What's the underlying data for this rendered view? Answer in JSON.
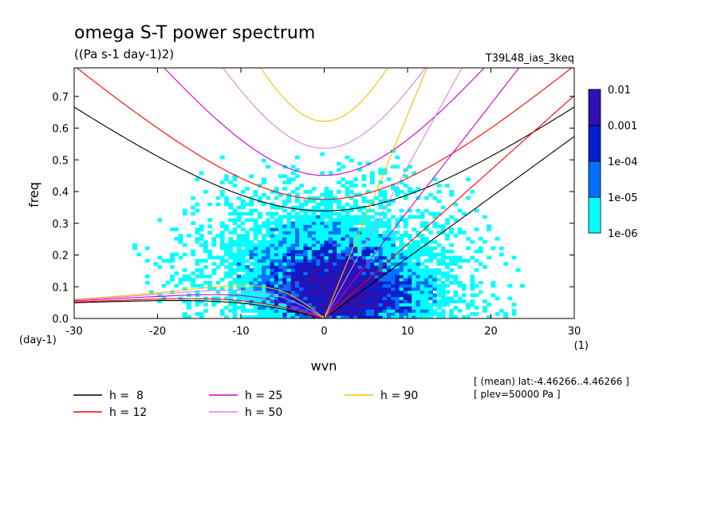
{
  "chart_data": {
    "type": "heatmap",
    "title": "omega S-T power spectrum",
    "subtitle": "((Pa s-1 day-1)2)",
    "run_label": "T39L48_ias_3keq",
    "xlabel": "wvn",
    "ylabel": "freq",
    "x_unit": "(1)",
    "y_unit": "(day-1)",
    "xlim": [
      -30,
      30
    ],
    "ylim": [
      0,
      0.79
    ],
    "x_ticks": [
      -30,
      -20,
      -10,
      0,
      10,
      20,
      30
    ],
    "y_ticks": [
      0.0,
      0.1,
      0.2,
      0.3,
      0.4,
      0.5,
      0.6,
      0.7
    ],
    "x_tick_labels": [
      "-30",
      "-20",
      "-10",
      "0",
      "10",
      "20",
      "30"
    ],
    "y_tick_labels": [
      "0.0",
      "0.1",
      "0.2",
      "0.3",
      "0.4",
      "0.5",
      "0.6",
      "0.7"
    ],
    "colorbar": {
      "levels": [
        "1e-06",
        "1e-05",
        "1e-04",
        "0.001",
        "0.01"
      ],
      "colors": [
        "#00ffff",
        "#0070ff",
        "#0020cc",
        "#3010b0"
      ]
    },
    "dispersion_curves": [
      {
        "label": "h =  8",
        "h": 8,
        "color": "#000000"
      },
      {
        "label": "h = 12",
        "h": 12,
        "color": "#ff0000"
      },
      {
        "label": "h = 25",
        "h": 25,
        "color": "#cc00cc"
      },
      {
        "label": "h = 50",
        "h": 50,
        "color": "#e080e0"
      },
      {
        "label": "h = 90",
        "h": 90,
        "color": "#f0c000"
      }
    ],
    "annotations": [
      "[ (mean) lat:-4.46266..4.46266 ]",
      "[ plev=50000 Pa ]"
    ]
  }
}
